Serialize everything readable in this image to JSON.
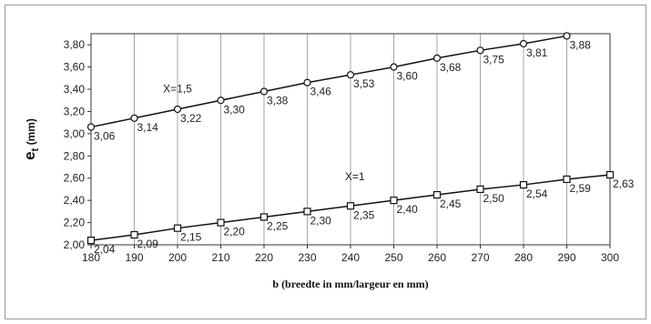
{
  "chart_data": {
    "type": "line",
    "title": "",
    "xlabel": "b (breedte in mm/largeur en mm)",
    "ylabel_main": "e",
    "ylabel_sub": "t",
    "ylabel_unit": " (mm)",
    "xlim": [
      180,
      300
    ],
    "ylim": [
      2.0,
      3.9
    ],
    "x_ticks": [
      180,
      190,
      200,
      210,
      220,
      230,
      240,
      250,
      260,
      270,
      280,
      290,
      300
    ],
    "y_ticks": [
      2.0,
      2.2,
      2.4,
      2.6,
      2.8,
      3.0,
      3.2,
      3.4,
      3.6,
      3.8
    ],
    "y_tick_labels": [
      "2,00",
      "2,20",
      "2,40",
      "2,60",
      "2,80",
      "3,00",
      "3,20",
      "3,40",
      "3,60",
      "3,80"
    ],
    "grid": "vertical",
    "series": [
      {
        "marker": "circle",
        "annotation": "X=1,5",
        "annotation_at": [
          200,
          3.37
        ],
        "x": [
          180,
          190,
          200,
          210,
          220,
          230,
          240,
          250,
          260,
          270,
          280,
          290
        ],
        "values": [
          3.06,
          3.14,
          3.22,
          3.3,
          3.38,
          3.46,
          3.53,
          3.6,
          3.68,
          3.75,
          3.81,
          3.88
        ],
        "labels": [
          "3,06",
          "3,14",
          "3,22",
          "3,30",
          "3,38",
          "3,46",
          "3,53",
          "3,60",
          "3,68",
          "3,75",
          "3,81",
          "3,88"
        ]
      },
      {
        "marker": "square",
        "annotation": "X=1",
        "annotation_at": [
          241,
          2.58
        ],
        "x": [
          180,
          190,
          200,
          210,
          220,
          230,
          240,
          250,
          260,
          270,
          280,
          290,
          300
        ],
        "values": [
          2.04,
          2.09,
          2.15,
          2.2,
          2.25,
          2.3,
          2.35,
          2.4,
          2.45,
          2.5,
          2.54,
          2.59,
          2.63
        ],
        "labels": [
          "2,04",
          "2,09",
          "2,15",
          "2,20",
          "2,25",
          "2,30",
          "2,35",
          "2,40",
          "2,45",
          "2,50",
          "2,54",
          "2,59",
          "2,63"
        ]
      }
    ]
  }
}
